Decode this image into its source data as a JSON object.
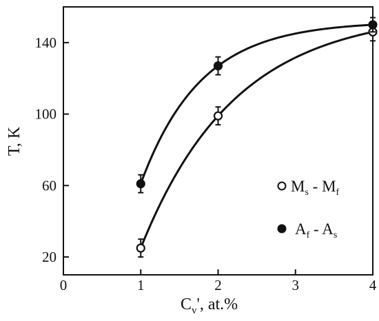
{
  "chart_data": {
    "type": "scatter",
    "title": "",
    "xlabel": "C",
    "xlabel_sub": "v",
    "xlabel_rest": "', at.%",
    "ylabel": "T, K",
    "xlim": [
      0,
      4
    ],
    "ylim": [
      10,
      160
    ],
    "x_ticks": [
      0,
      1,
      2,
      3,
      4
    ],
    "y_ticks": [
      20,
      60,
      100,
      140
    ],
    "grid": false,
    "legend_position": "right",
    "series": [
      {
        "label_main_1": "M",
        "label_sub_1": "s",
        "label_sep": " - ",
        "label_main_2": "M",
        "label_sub_2": "f",
        "marker": "open-circle",
        "x": [
          1,
          2,
          4
        ],
        "y": [
          25,
          99,
          146
        ],
        "error": [
          5,
          5,
          5
        ]
      },
      {
        "label_main_1": "A",
        "label_sub_1": "f",
        "label_sep": " - ",
        "label_main_2": "A",
        "label_sub_2": "s",
        "marker": "filled-circle",
        "x": [
          1,
          2,
          4
        ],
        "y": [
          61,
          127,
          150
        ],
        "error": [
          5,
          5,
          4
        ]
      }
    ]
  }
}
